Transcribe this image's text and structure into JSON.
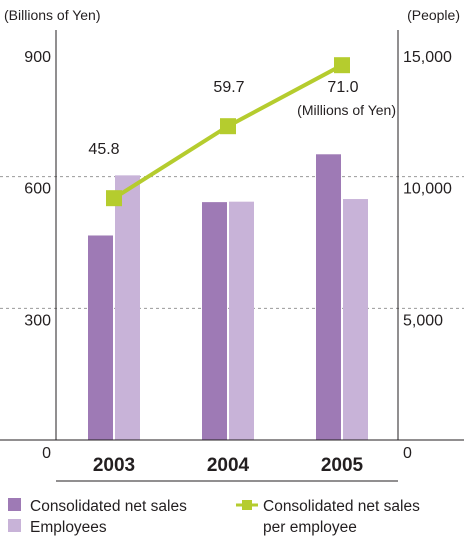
{
  "chart_data": {
    "type": "bar+line",
    "categories": [
      "2003",
      "2004",
      "2005"
    ],
    "left_axis": {
      "unit_label": "(Billions of Yen)",
      "ticks": [
        "0",
        "300",
        "600",
        "900"
      ],
      "range": [
        0,
        900
      ]
    },
    "right_axis": {
      "unit_label": "(People)",
      "ticks": [
        "0",
        "5,000",
        "10,000",
        "15,000"
      ],
      "range": [
        0,
        15000
      ]
    },
    "series": [
      {
        "name": "Consolidated net sales",
        "type": "bar",
        "axis": "left",
        "color": "#9e7ab5",
        "values": [
          466,
          542,
          651
        ]
      },
      {
        "name": "Employees",
        "type": "bar",
        "axis": "right",
        "color": "#c8b3d8",
        "values": [
          10050,
          9050,
          9150
        ]
      },
      {
        "name": "Consolidated net sales per employee",
        "type": "line",
        "axis": "left",
        "color": "#b5cc2e",
        "values": [
          45.8,
          59.7,
          71.0
        ],
        "plot_values": [
          551,
          715,
          854
        ],
        "data_labels": [
          "45.8",
          "59.7",
          "71.0"
        ]
      }
    ],
    "annotation": "(Millions of Yen)",
    "gridlines": "dashed",
    "legend": {
      "placement": "bottom",
      "items": [
        {
          "name": "Consolidated net sales",
          "marker": "square",
          "color": "#9e7ab5"
        },
        {
          "name": "Employees",
          "marker": "square",
          "color": "#c8b3d8"
        },
        {
          "name": "Consolidated net sales per employee",
          "marker": "line-square",
          "color": "#b5cc2e",
          "lines": [
            "Consolidated net sales",
            "per employee"
          ]
        }
      ]
    }
  }
}
